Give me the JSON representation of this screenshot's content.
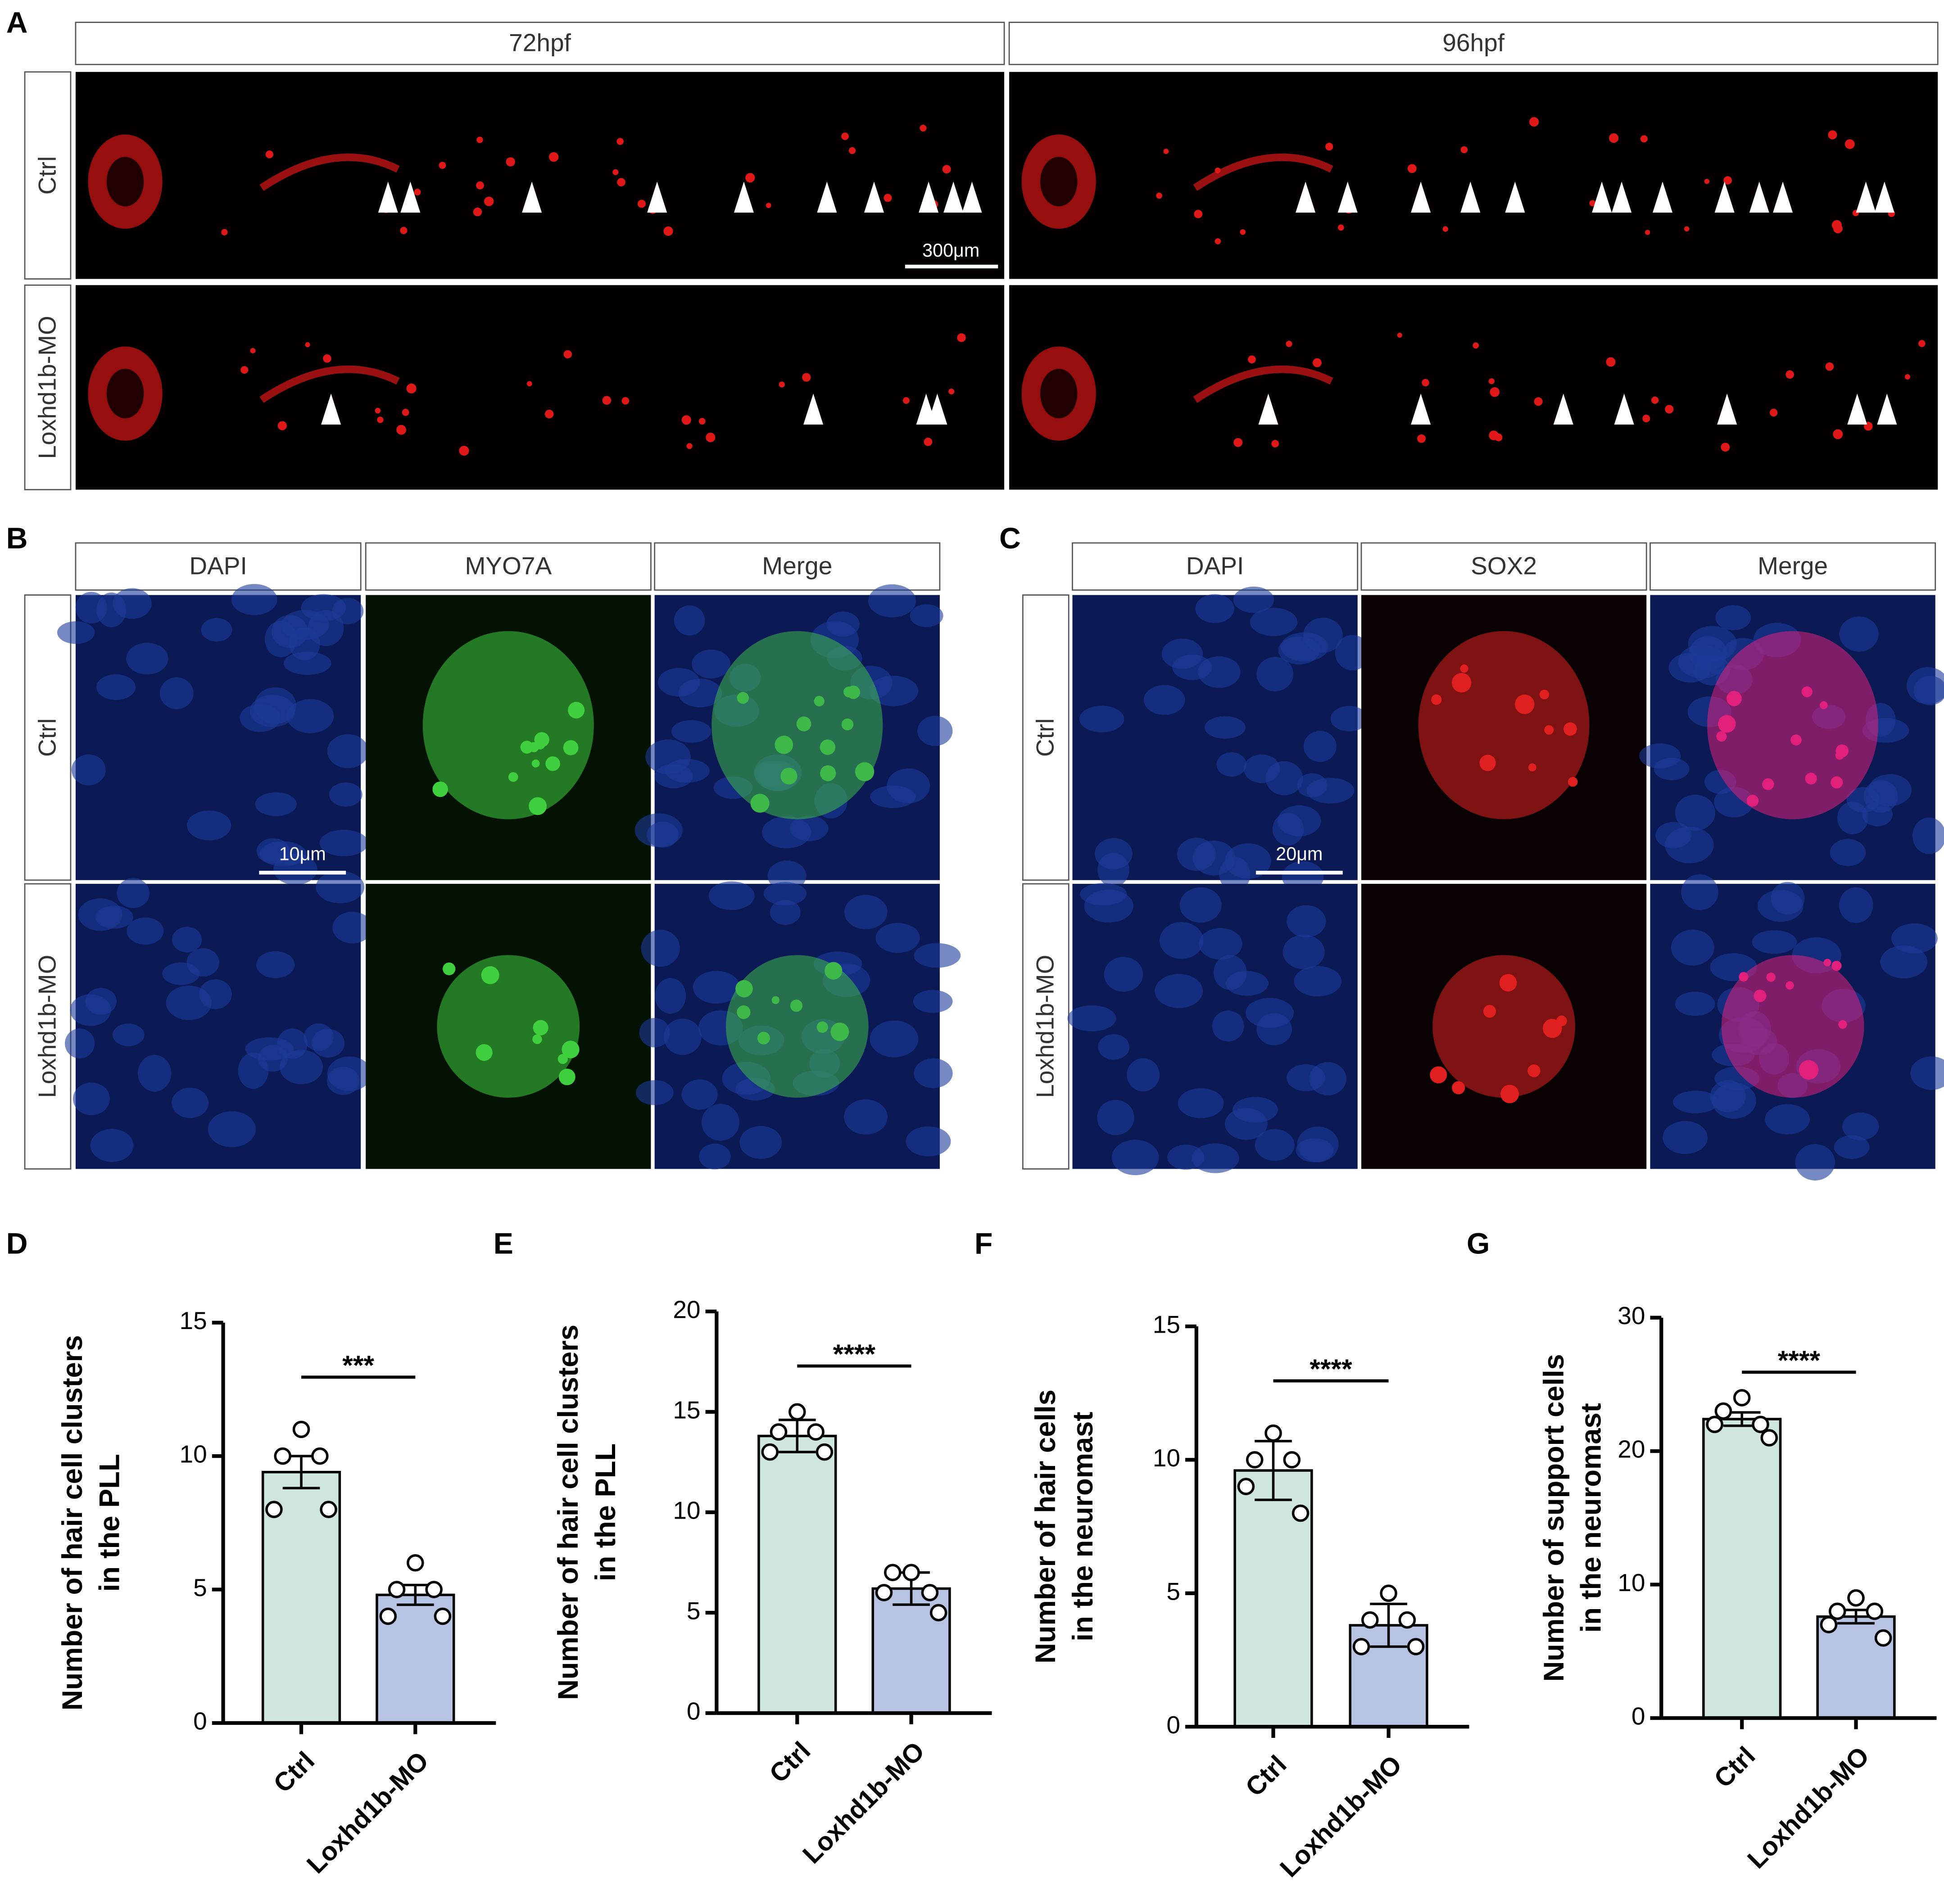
{
  "panels": {
    "A": {
      "label": "A",
      "columns": [
        "72hpf",
        "96hpf"
      ],
      "rows": [
        "Ctrl",
        "Loxhd1b-MO"
      ],
      "scale_bar": "300μm"
    },
    "B": {
      "label": "B",
      "columns": [
        "DAPI",
        "MYO7A",
        "Merge"
      ],
      "rows": [
        "Ctrl",
        "Loxhd1b-MO"
      ],
      "scale_bar": "10μm"
    },
    "C": {
      "label": "C",
      "columns": [
        "DAPI",
        "SOX2",
        "Merge"
      ],
      "rows": [
        "Ctrl",
        "Loxhd1b-MO"
      ],
      "scale_bar": "20μm"
    }
  },
  "chart_data": [
    {
      "type": "bar",
      "panel_label": "D",
      "ylabel": [
        "Number of hair cell clusters",
        "in the PLL"
      ],
      "categories": [
        "Ctrl",
        "Loxhd1b-MO"
      ],
      "values": [
        9.4,
        4.8
      ],
      "errors": [
        0.6,
        0.37
      ],
      "points": [
        [
          11,
          10,
          10,
          8,
          8
        ],
        [
          6,
          5,
          5,
          4,
          4
        ]
      ],
      "colors": [
        "#cfe6df",
        "#b6c3e3"
      ],
      "ylim": [
        0,
        15
      ],
      "yticks": [
        0,
        5,
        10,
        15
      ],
      "annotation": "***"
    },
    {
      "type": "bar",
      "panel_label": "E",
      "ylabel": [
        "Number of hair cell clusters",
        "in the PLL"
      ],
      "categories": [
        "Ctrl",
        "Loxhd1b-MO"
      ],
      "values": [
        13.8,
        6.2
      ],
      "errors": [
        0.8,
        0.8
      ],
      "points": [
        [
          15,
          14,
          14,
          13,
          13
        ],
        [
          7,
          7,
          6,
          6,
          5
        ]
      ],
      "colors": [
        "#cfe6df",
        "#b6c3e3"
      ],
      "ylim": [
        0,
        20
      ],
      "yticks": [
        0,
        5,
        10,
        15,
        20
      ],
      "annotation": "****"
    },
    {
      "type": "bar",
      "panel_label": "F",
      "ylabel": [
        "Number of hair cells",
        "in the neuromast"
      ],
      "categories": [
        "Ctrl",
        "Loxhd1b-MO"
      ],
      "values": [
        9.6,
        3.8
      ],
      "errors": [
        1.1,
        0.8
      ],
      "points": [
        [
          11,
          10,
          10,
          9,
          8
        ],
        [
          5,
          4,
          4,
          3,
          3
        ]
      ],
      "colors": [
        "#cfe6df",
        "#b6c3e3"
      ],
      "ylim": [
        0,
        15
      ],
      "yticks": [
        0,
        5,
        10,
        15
      ],
      "annotation": "****"
    },
    {
      "type": "bar",
      "panel_label": "G",
      "ylabel": [
        "Number of support cells",
        "in the neuromast"
      ],
      "categories": [
        "Ctrl",
        "Loxhd1b-MO"
      ],
      "values": [
        22.4,
        7.6
      ],
      "errors": [
        0.5,
        0.5
      ],
      "points": [
        [
          24,
          23,
          22,
          22,
          21
        ],
        [
          9,
          8,
          8,
          7,
          6
        ]
      ],
      "colors": [
        "#cfe6df",
        "#b6c3e3"
      ],
      "ylim": [
        0,
        30
      ],
      "yticks": [
        0,
        10,
        20,
        30
      ],
      "annotation": "****"
    }
  ]
}
